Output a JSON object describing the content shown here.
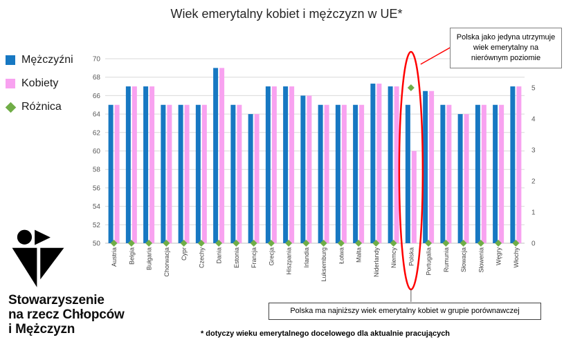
{
  "title": "Wiek emerytalny kobiet i mężczyzn w UE*",
  "legend": [
    {
      "label": "Mężczyźni",
      "color": "#1778c2",
      "shape": "square"
    },
    {
      "label": "Kobiety",
      "color": "#f8a2f0",
      "shape": "square"
    },
    {
      "label": "Różnica",
      "color": "#70ad47",
      "shape": "diamond"
    }
  ],
  "annotations": {
    "top_right": "Polska jako jedyna utrzymuje wiek emerytalny na nierównym poziomie",
    "bottom": "Polska ma najniższy wiek emerytalny kobiet w grupie porównawczej"
  },
  "footnote": "* dotyczy wieku emerytalnego docelowego dla aktualnie pracujących",
  "logo_text": {
    "line1": "Stowarzyszenie",
    "line2": "na rzecz Chłopców",
    "line3": "i Mężczyzn"
  },
  "chart_data": {
    "type": "bar",
    "title": "Wiek emerytalny kobiet i mężczyzn w UE*",
    "categories": [
      "Austria",
      "Belgia",
      "Bułgaria",
      "Chorwacja",
      "Cypr",
      "Czechy",
      "Dania",
      "Estonia",
      "Francja",
      "Grecja",
      "Hiszpania",
      "Irlandia",
      "Luksemburg",
      "Łotwa",
      "Malta",
      "Niderlandy",
      "Niemcy",
      "Polska",
      "Portugalia",
      "Rumunia",
      "Słowacja",
      "Słowenia",
      "Węgry",
      "Włochy"
    ],
    "series": [
      {
        "name": "Mężczyźni",
        "type": "bar",
        "axis": "left",
        "color": "#1778c2",
        "values": [
          65,
          67,
          67,
          65,
          65,
          65,
          69,
          65,
          64,
          67,
          67,
          66,
          65,
          65,
          65,
          67.3,
          67,
          65,
          66.5,
          65,
          64,
          65,
          65,
          67
        ]
      },
      {
        "name": "Kobiety",
        "type": "bar",
        "axis": "left",
        "color": "#f8a2f0",
        "values": [
          65,
          67,
          67,
          65,
          65,
          65,
          69,
          65,
          64,
          67,
          67,
          66,
          65,
          65,
          65,
          67.3,
          67,
          60,
          66.5,
          65,
          64,
          65,
          65,
          67
        ]
      },
      {
        "name": "Różnica",
        "type": "diamond",
        "axis": "right",
        "color": "#70ad47",
        "values": [
          0,
          0,
          0,
          0,
          0,
          0,
          0,
          0,
          0,
          0,
          0,
          0,
          0,
          0,
          0,
          0,
          0,
          5,
          0,
          0,
          0,
          0,
          0,
          0
        ]
      }
    ],
    "left_axis": {
      "min": 50,
      "max": 70,
      "ticks": [
        50,
        52,
        54,
        56,
        58,
        60,
        62,
        64,
        66,
        68,
        70
      ]
    },
    "right_axis": {
      "min": 0,
      "max": 5,
      "ticks": [
        0,
        1,
        2,
        3,
        4,
        5
      ]
    },
    "grid": true,
    "legend_position": "left",
    "highlighted_category": "Polska",
    "highlight_color": "#ff0000",
    "xlabel": "",
    "ylabel": ""
  }
}
